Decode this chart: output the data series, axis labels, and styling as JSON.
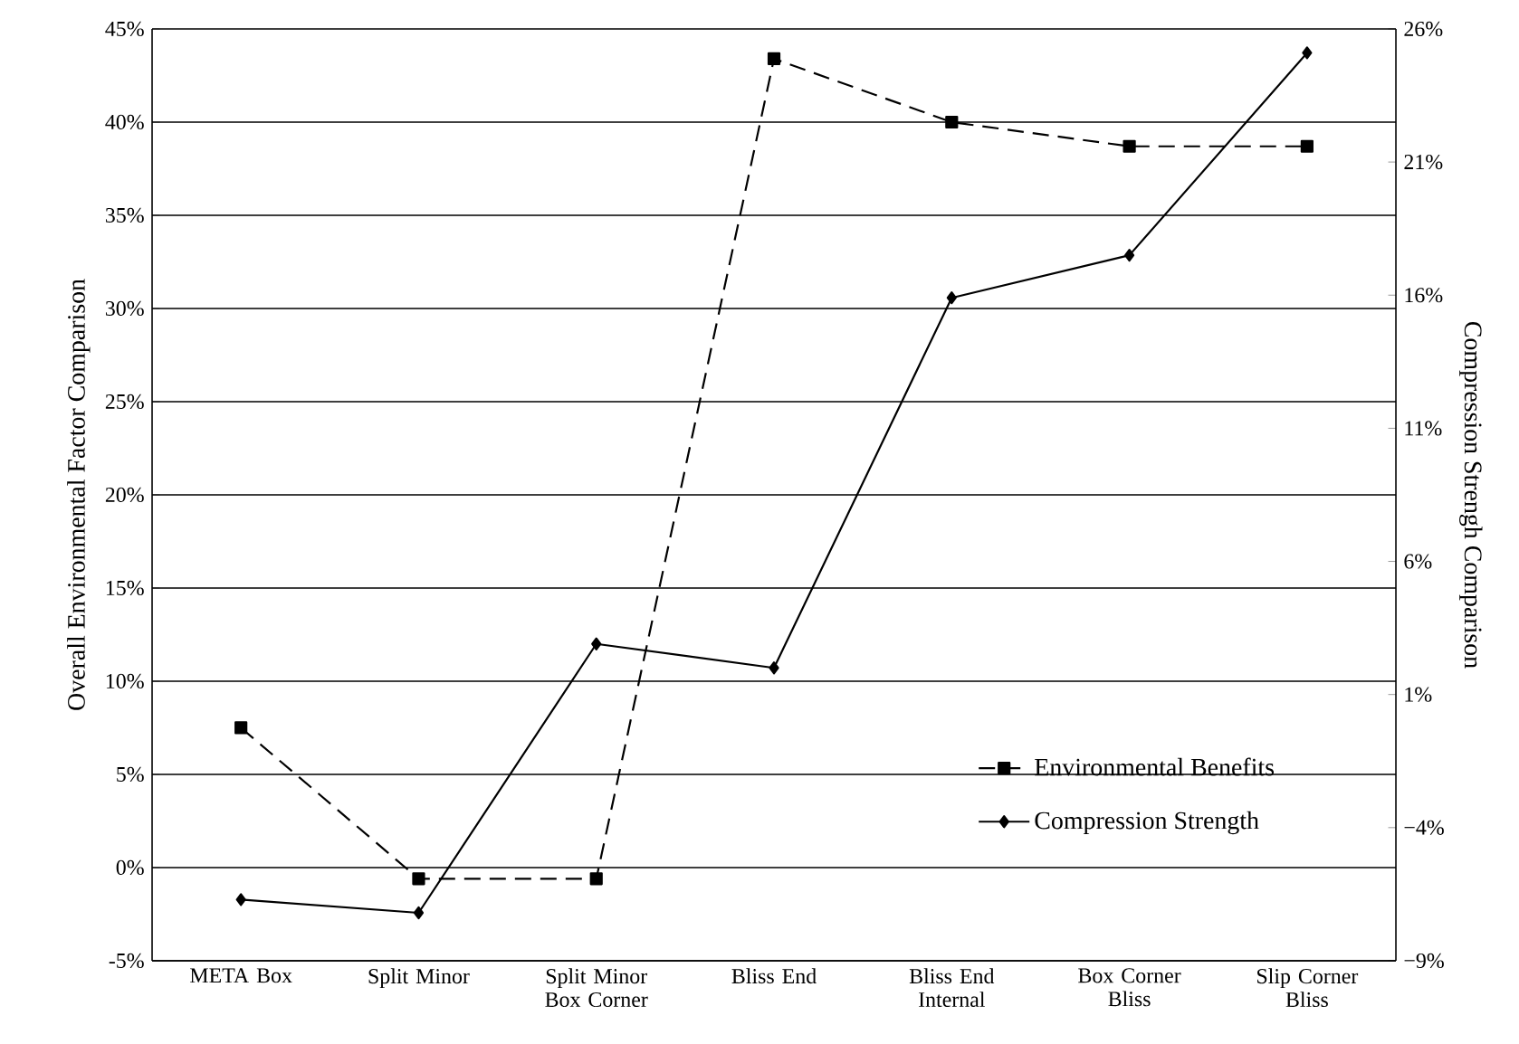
{
  "chart_data": {
    "type": "line",
    "categories": [
      "META Box",
      "Split Minor",
      "Split Minor Box Corner",
      "Bliss End",
      "Bliss End Internal",
      "Box Corner Bliss",
      "Slip Corner Bliss"
    ],
    "series": [
      {
        "name": "Environmental Benefits",
        "color": "#000000",
        "marker": "square",
        "line_style": "dashed",
        "values": [
          7.5,
          -0.6,
          -0.6,
          43.4,
          40.0,
          38.7,
          38.7
        ]
      },
      {
        "name": "Compression Strength",
        "color": "#000000",
        "marker": "diamond",
        "line_style": "solid",
        "axis": "y2",
        "values": [
          -6.7,
          -7.2,
          2.9,
          2.0,
          15.9,
          17.5,
          25.1
        ]
      }
    ],
    "ylabel": "Overall Environmental Factor Comparison",
    "y2label": "Compression Strengh Comparison",
    "ylim": [
      -5,
      45
    ],
    "yticks": [
      {
        "value": -5,
        "label": "-5%"
      },
      {
        "value": 0,
        "label": "0%"
      },
      {
        "value": 5,
        "label": "5%"
      },
      {
        "value": 10,
        "label": "10%"
      },
      {
        "value": 15,
        "label": "15%"
      },
      {
        "value": 20,
        "label": "20%"
      },
      {
        "value": 25,
        "label": "25%"
      },
      {
        "value": 30,
        "label": "30%"
      },
      {
        "value": 35,
        "label": "35%"
      },
      {
        "value": 40,
        "label": "40%"
      },
      {
        "value": 45,
        "label": "45%"
      }
    ],
    "y2lim": [
      -9,
      26
    ],
    "y2ticks": [
      {
        "value": -9,
        "label": "−9%"
      },
      {
        "value": -4,
        "label": "−4%"
      },
      {
        "value": 1,
        "label": "1%"
      },
      {
        "value": 6,
        "label": "6%"
      },
      {
        "value": 11,
        "label": "11%"
      },
      {
        "value": 16,
        "label": "16%"
      },
      {
        "value": 21,
        "label": "21%"
      },
      {
        "value": 26,
        "label": "26%"
      }
    ],
    "grid": "y",
    "legend": "bottom right"
  }
}
